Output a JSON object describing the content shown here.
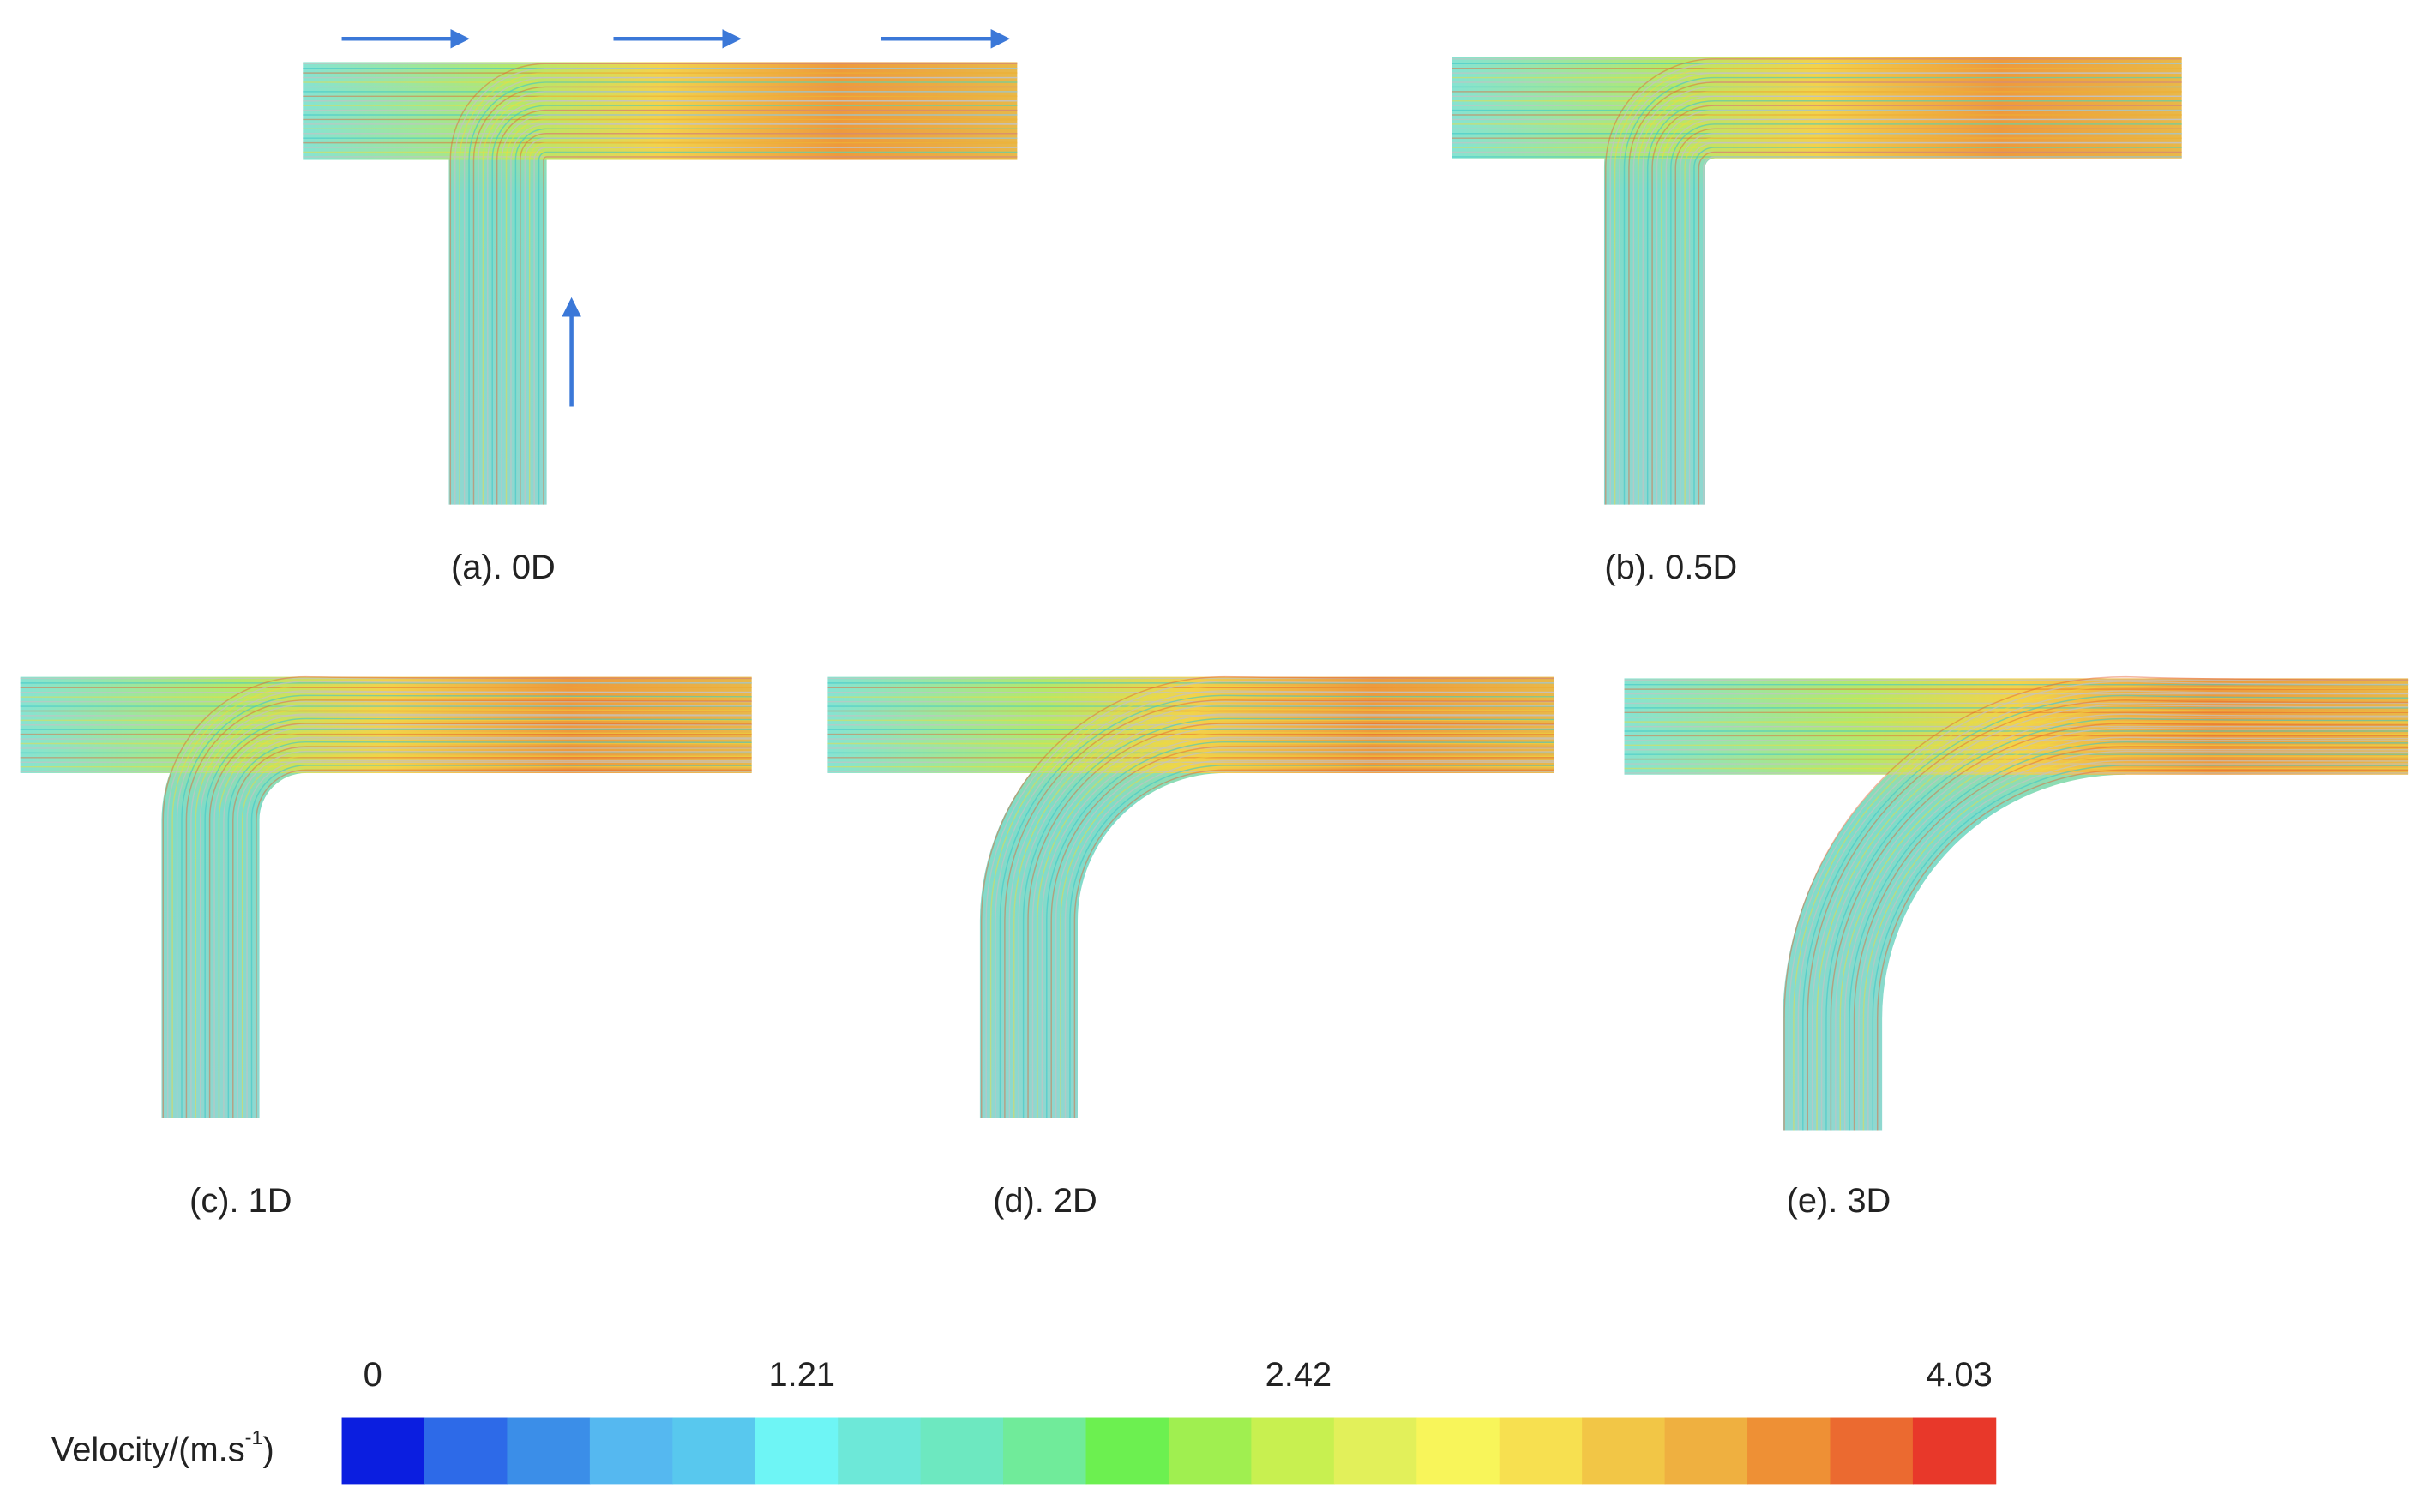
{
  "panels": [
    {
      "label": "(a). 0D"
    },
    {
      "label": "(b). 0.5D"
    },
    {
      "label": "(c). 1D"
    },
    {
      "label": "(d). 2D"
    },
    {
      "label": "(e). 3D"
    }
  ],
  "colorbar": {
    "title": "Velocity/(m.s",
    "title_sup": "-1",
    "title_end": ")",
    "ticks": [
      0,
      1.21,
      2.42,
      4.03
    ],
    "colors": [
      "#0b1ee0",
      "#2d6ae8",
      "#3b8ee8",
      "#55b8f0",
      "#58c8ee",
      "#6ef5f5",
      "#6de8d8",
      "#6de8c0",
      "#70eb9a",
      "#6cf050",
      "#a0ef50",
      "#c8f050",
      "#e2f05a",
      "#f8f55a",
      "#f7e050",
      "#f2c646",
      "#efb040",
      "#ee9035",
      "#eb6a30",
      "#e8382a"
    ]
  }
}
